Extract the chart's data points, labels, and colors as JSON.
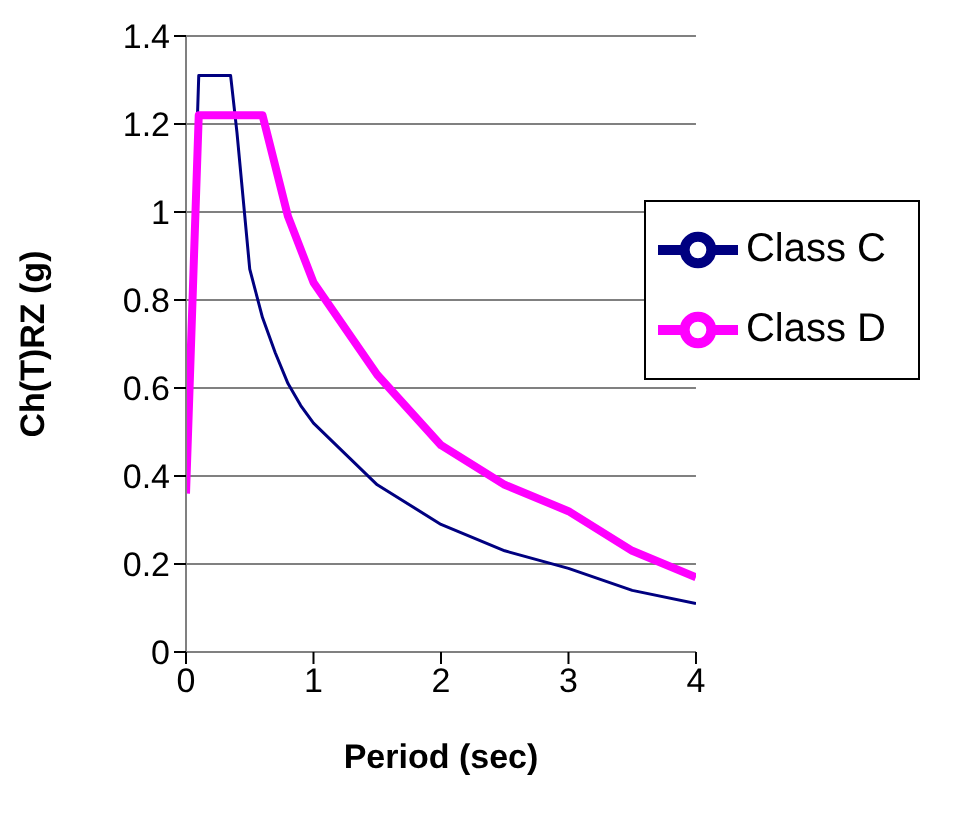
{
  "chart_data": {
    "type": "line",
    "xlabel": "Period (sec)",
    "ylabel": "Ch(T)RZ (g)",
    "xlim": [
      0,
      4
    ],
    "xticks": [
      0,
      1,
      2,
      3,
      4
    ],
    "ylim": [
      0,
      1.4
    ],
    "yticks": [
      0,
      0.2,
      0.4,
      0.6,
      0.8,
      1,
      1.2,
      1.4
    ],
    "grid": "y",
    "legend": "top right",
    "marker": "none",
    "line_style": "solid",
    "series": [
      {
        "name": "Class C",
        "color": "#000080",
        "x": [
          0,
          0.1,
          0.35,
          0.4,
          0.5,
          0.6,
          0.7,
          0.8,
          0.9,
          1,
          1.5,
          2,
          2.5,
          3,
          3.5,
          4
        ],
        "values": [
          0.4,
          1.31,
          1.31,
          1.18,
          0.87,
          0.76,
          0.68,
          0.61,
          0.56,
          0.52,
          0.38,
          0.29,
          0.23,
          0.19,
          0.14,
          0.11
        ]
      },
      {
        "name": "Class D",
        "color": "#ff00ff",
        "x": [
          0,
          0.1,
          0.6,
          0.8,
          1,
          1.5,
          2,
          2.5,
          3,
          3.5,
          4
        ],
        "values": [
          0.36,
          1.22,
          1.22,
          0.99,
          0.84,
          0.63,
          0.47,
          0.38,
          0.32,
          0.23,
          0.17
        ]
      }
    ]
  }
}
